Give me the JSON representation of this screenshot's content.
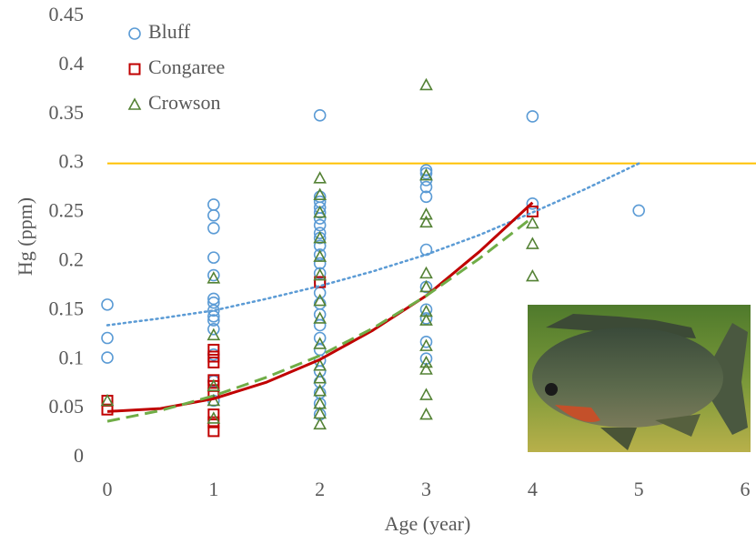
{
  "chart_data": {
    "type": "scatter",
    "x_label": "Age (year)",
    "y_label": "Hg (ppm)",
    "xlim": [
      0,
      6
    ],
    "ylim": [
      0,
      0.45
    ],
    "xticks": [
      0,
      1,
      2,
      3,
      4,
      5,
      6
    ],
    "yticks": [
      0,
      0.05,
      0.1,
      0.15,
      0.2,
      0.25,
      0.3,
      0.35,
      0.4,
      0.45
    ],
    "legend": "top-left",
    "reference_line": {
      "value": 0.3,
      "color": "#ffc000"
    },
    "series": [
      {
        "name": "Bluff",
        "color": "#5b9bd5",
        "marker": "circle",
        "x": [
          0,
          0,
          0,
          1,
          1,
          1,
          1,
          1,
          1,
          1,
          1,
          1,
          1,
          1,
          1,
          1,
          1,
          2,
          2,
          2,
          2,
          2,
          2,
          2,
          2,
          2,
          2,
          2,
          2,
          2,
          2,
          2,
          2,
          2,
          2,
          2,
          2,
          2,
          2,
          2,
          2,
          2,
          2,
          3,
          3,
          3,
          3,
          3,
          3,
          3,
          3,
          3,
          3,
          3,
          4,
          4,
          5
        ],
        "values": [
          0.156,
          0.122,
          0.102,
          0.258,
          0.247,
          0.234,
          0.204,
          0.186,
          0.162,
          0.158,
          0.15,
          0.144,
          0.14,
          0.131,
          0.105,
          0.078,
          0.058,
          0.349,
          0.266,
          0.261,
          0.255,
          0.25,
          0.244,
          0.237,
          0.229,
          0.224,
          0.216,
          0.207,
          0.198,
          0.188,
          0.179,
          0.168,
          0.157,
          0.146,
          0.135,
          0.122,
          0.11,
          0.099,
          0.088,
          0.077,
          0.066,
          0.055,
          0.044,
          0.293,
          0.29,
          0.283,
          0.276,
          0.266,
          0.212,
          0.174,
          0.151,
          0.142,
          0.118,
          0.101,
          0.348,
          0.259,
          0.252
        ],
        "trend": {
          "style": "dotted",
          "x": [
            0,
            0.5,
            1,
            1.5,
            2,
            2.5,
            3,
            3.5,
            4,
            4.5,
            5
          ],
          "values": [
            0.135,
            0.142,
            0.15,
            0.162,
            0.175,
            0.19,
            0.207,
            0.227,
            0.25,
            0.274,
            0.3
          ]
        }
      },
      {
        "name": "Congaree",
        "color": "#c00000",
        "marker": "square",
        "x": [
          0,
          0,
          1,
          1,
          1,
          1,
          1,
          1,
          1,
          1,
          1,
          2,
          4
        ],
        "values": [
          0.058,
          0.049,
          0.11,
          0.103,
          0.097,
          0.079,
          0.073,
          0.066,
          0.044,
          0.036,
          0.027,
          0.179,
          0.251
        ],
        "trend": {
          "style": "solid",
          "x": [
            0,
            0.5,
            1,
            1.5,
            2,
            2.5,
            3,
            3.5,
            4
          ],
          "values": [
            0.047,
            0.05,
            0.06,
            0.077,
            0.1,
            0.13,
            0.165,
            0.21,
            0.26
          ]
        }
      },
      {
        "name": "Crowson",
        "color": "#548235",
        "marker": "triangle",
        "x": [
          0,
          1,
          1,
          1,
          1,
          1,
          2,
          2,
          2,
          2,
          2,
          2,
          2,
          2,
          2,
          2,
          2,
          2,
          2,
          2,
          2,
          3,
          3,
          3,
          3,
          3,
          3,
          3,
          3,
          3,
          3,
          3,
          3,
          3,
          4,
          4,
          4
        ],
        "values": [
          0.058,
          0.183,
          0.125,
          0.073,
          0.058,
          0.04,
          0.285,
          0.268,
          0.25,
          0.224,
          0.205,
          0.186,
          0.16,
          0.142,
          0.116,
          0.094,
          0.081,
          0.068,
          0.055,
          0.045,
          0.034,
          0.38,
          0.288,
          0.248,
          0.24,
          0.188,
          0.174,
          0.149,
          0.14,
          0.114,
          0.097,
          0.09,
          0.064,
          0.044,
          0.239,
          0.218,
          0.185
        ],
        "trend": {
          "style": "dashed",
          "color": "#70ad47",
          "x": [
            0,
            0.5,
            1,
            1.5,
            2,
            2.5,
            3,
            3.5,
            4
          ],
          "values": [
            0.037,
            0.048,
            0.063,
            0.082,
            0.104,
            0.132,
            0.165,
            0.203,
            0.245
          ]
        }
      }
    ]
  }
}
